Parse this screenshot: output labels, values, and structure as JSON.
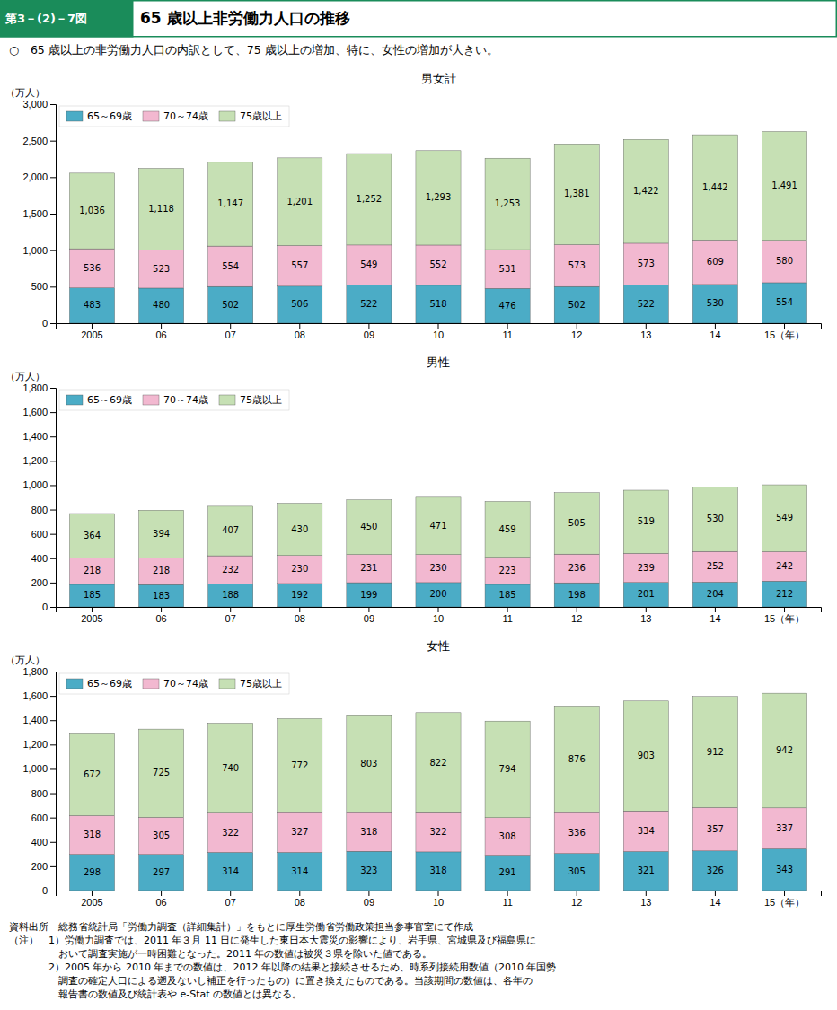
{
  "label": "第3－(2)－7図",
  "title": "65 歳以上非労働力人口の推移",
  "subtitle": "○　65 歳以上の非労働力人口の内訳として、75 歳以上の増加、特に、女性の増加が大きい。",
  "notes": [
    "資料出所　総務省統計局「労働力調査（詳細集計）」をもとに厚生労働省労働政策担当参事官室にて作成",
    "（注）　1）労働力調査では、2011 年３月 11 日に発生した東日本大震災の影響により、岩手県、宮城県及び福島県に",
    "　　　　　おいて調査実施が一時困難となった。2011 年の数値は被災３県を除いた値である。",
    "　　　　2）2005 年から 2010 年までの数値は、2012 年以降の結果と接続させるため、時系列接続用数値（2010 年国勢",
    "　　　　　調査の確定人口による遡及ないし補正を行ったもの）に置き換えたものである。当該期間の数値は、各年の",
    "　　　　　報告書の数値及び統計表や e-Stat の数値とは異なる。"
  ],
  "chart_data": [
    {
      "type": "bar",
      "stacked": true,
      "title": "男女計",
      "ylabel": "（万人）",
      "categories": [
        "2005",
        "06",
        "07",
        "08",
        "09",
        "10",
        "11",
        "12",
        "13",
        "14",
        "15（年）"
      ],
      "series": [
        {
          "name": "65～69歳",
          "color": "#4bacc6",
          "values": [
            483,
            480,
            502,
            506,
            522,
            518,
            476,
            502,
            522,
            530,
            554
          ]
        },
        {
          "name": "70～74歳",
          "color": "#f2b8d0",
          "values": [
            536,
            523,
            554,
            557,
            549,
            552,
            531,
            573,
            573,
            609,
            580
          ]
        },
        {
          "name": "75歳以上",
          "color": "#c6e0b4",
          "values": [
            1036,
            1118,
            1147,
            1201,
            1252,
            1293,
            1253,
            1381,
            1422,
            1442,
            1491
          ],
          "value_labels": [
            "1,036",
            "1,118",
            "1,147",
            "1,201",
            "1,252",
            "1,293",
            "1,253",
            "1,381",
            "1,422",
            "1,442",
            "1,491"
          ]
        }
      ],
      "ylim": [
        0,
        3000
      ],
      "yticks": [
        0,
        500,
        {
          "value": 1000,
          "label": "1,000"
        },
        {
          "value": 1500,
          "label": "1,500"
        },
        {
          "value": 2000,
          "label": "2,000"
        },
        {
          "value": 2500,
          "label": "2,500"
        },
        {
          "value": 3000,
          "label": "3,000"
        }
      ],
      "data_labels": true,
      "grid": false,
      "legend": "upper left"
    },
    {
      "type": "bar",
      "stacked": true,
      "title": "男性",
      "ylabel": "（万人）",
      "categories": [
        "2005",
        "06",
        "07",
        "08",
        "09",
        "10",
        "11",
        "12",
        "13",
        "14",
        "15（年）"
      ],
      "series": [
        {
          "name": "65～69歳",
          "color": "#4bacc6",
          "values": [
            185,
            183,
            188,
            192,
            199,
            200,
            185,
            198,
            201,
            204,
            212
          ]
        },
        {
          "name": "70～74歳",
          "color": "#f2b8d0",
          "values": [
            218,
            218,
            232,
            230,
            231,
            230,
            223,
            236,
            239,
            252,
            242
          ]
        },
        {
          "name": "75歳以上",
          "color": "#c6e0b4",
          "values": [
            364,
            394,
            407,
            430,
            450,
            471,
            459,
            505,
            519,
            530,
            549
          ]
        }
      ],
      "ylim": [
        0,
        1800
      ],
      "yticks": [
        0,
        200,
        400,
        600,
        800,
        {
          "value": 1000,
          "label": "1,000"
        },
        {
          "value": 1200,
          "label": "1,200"
        },
        {
          "value": 1400,
          "label": "1,400"
        },
        {
          "value": 1600,
          "label": "1,600"
        },
        {
          "value": 1800,
          "label": "1,800"
        }
      ],
      "data_labels": true,
      "grid": false,
      "legend": "upper left"
    },
    {
      "type": "bar",
      "stacked": true,
      "title": "女性",
      "ylabel": "（万人）",
      "categories": [
        "2005",
        "06",
        "07",
        "08",
        "09",
        "10",
        "11",
        "12",
        "13",
        "14",
        "15（年）"
      ],
      "series": [
        {
          "name": "65～69歳",
          "color": "#4bacc6",
          "values": [
            298,
            297,
            314,
            314,
            323,
            318,
            291,
            305,
            321,
            326,
            343
          ]
        },
        {
          "name": "70～74歳",
          "color": "#f2b8d0",
          "values": [
            318,
            305,
            322,
            327,
            318,
            322,
            308,
            336,
            334,
            357,
            337
          ]
        },
        {
          "name": "75歳以上",
          "color": "#c6e0b4",
          "values": [
            672,
            725,
            740,
            772,
            803,
            822,
            794,
            876,
            903,
            912,
            942
          ]
        }
      ],
      "ylim": [
        0,
        1800
      ],
      "yticks": [
        0,
        200,
        400,
        600,
        800,
        {
          "value": 1000,
          "label": "1,000"
        },
        {
          "value": 1200,
          "label": "1,200"
        },
        {
          "value": 1400,
          "label": "1,400"
        },
        {
          "value": 1600,
          "label": "1,600"
        },
        {
          "value": 1800,
          "label": "1,800"
        }
      ],
      "data_labels": true,
      "grid": false,
      "legend": "upper left"
    }
  ]
}
